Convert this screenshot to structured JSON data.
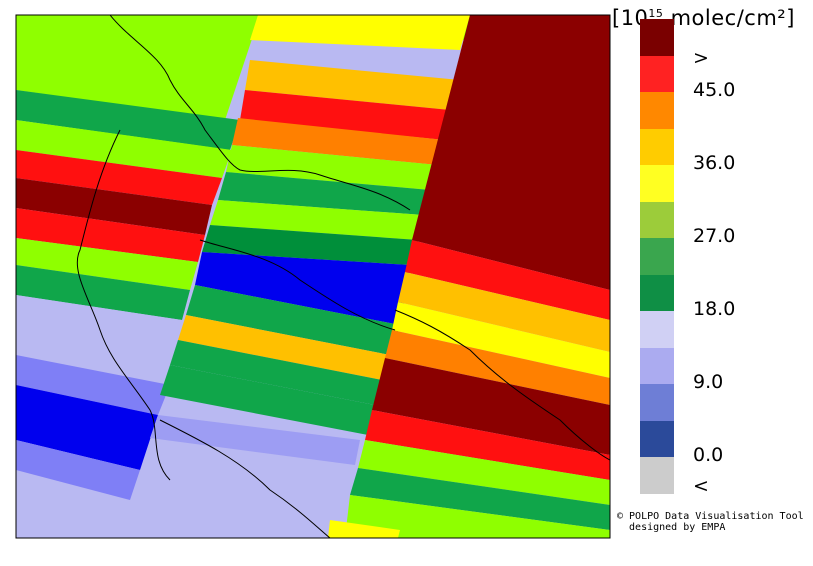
{
  "legend": {
    "units_base": "[10",
    "units_exp": "15",
    "units_rest": " molec/cm²]",
    "colors": [
      "#cccccc",
      "#2b4a9a",
      "#6e7ed6",
      "#ababf0",
      "#d0d0f4",
      "#0f8f45",
      "#3aa64e",
      "#9ccc3a",
      "#ffff22",
      "#ffcc00",
      "#ff8800",
      "#ff2222",
      "#7a0000"
    ],
    "labels": [
      ">",
      "45.0",
      "36.0",
      "27.0",
      "18.0",
      "9.0",
      "0.0",
      "<"
    ]
  },
  "credit": {
    "line1": "© POLPO Data Visualisation Tool",
    "line2": "  designed by EMPA"
  }
}
